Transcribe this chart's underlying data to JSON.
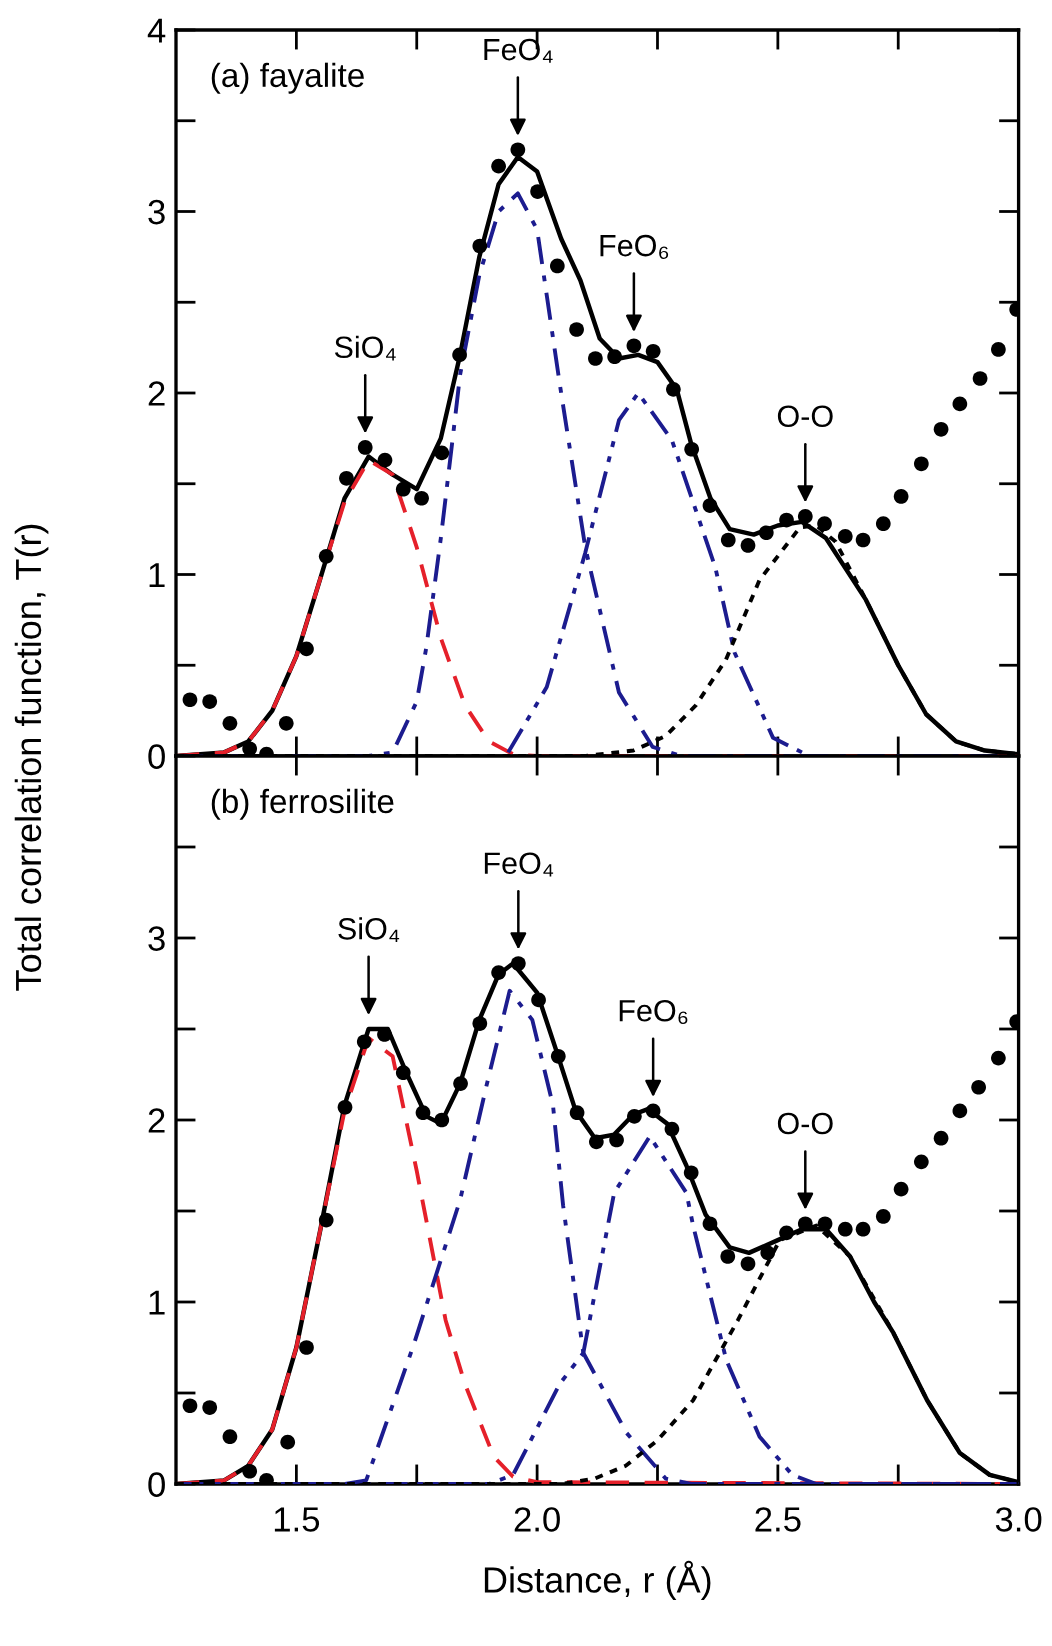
{
  "chart_data": [
    {
      "type": "line",
      "title": "(a) fayalite",
      "ylabel": "Total correlation function, T(r)",
      "xlim": [
        1.25,
        3.0
      ],
      "ylim": [
        0,
        4
      ],
      "xticks": [
        {
          "value": 1.5,
          "label": null
        },
        {
          "value": 1.75,
          "label": null
        },
        {
          "value": 2.0,
          "label": null
        },
        {
          "value": 2.25,
          "label": null
        },
        {
          "value": 2.5,
          "label": null
        },
        {
          "value": 2.75,
          "label": null
        }
      ],
      "yticks": [
        0,
        {
          "value": 0.5,
          "label": null
        },
        1,
        {
          "value": 1.5,
          "label": null
        },
        2,
        {
          "value": 2.5,
          "label": null
        },
        3,
        {
          "value": 3.5,
          "label": null
        },
        4
      ],
      "tick_labels": "y",
      "grid": false,
      "legend": false,
      "series": [
        {
          "type": "scatter",
          "marker": "circle",
          "color": "#000000",
          "x": [
            1.279,
            1.32,
            1.362,
            1.403,
            1.438,
            1.479,
            1.521,
            1.562,
            1.604,
            1.643,
            1.684,
            1.722,
            1.76,
            1.802,
            1.839,
            1.881,
            1.92,
            1.96,
            2.001,
            2.042,
            2.082,
            2.121,
            2.161,
            2.201,
            2.241,
            2.283,
            2.321,
            2.359,
            2.397,
            2.438,
            2.476,
            2.518,
            2.557,
            2.597,
            2.64,
            2.677,
            2.719,
            2.756,
            2.798,
            2.839,
            2.878,
            2.92,
            2.958,
            2.996
          ],
          "values": [
            0.31,
            0.3,
            0.18,
            0.04,
            0.01,
            0.18,
            0.59,
            1.1,
            1.53,
            1.7,
            1.63,
            1.47,
            1.42,
            1.67,
            2.21,
            2.81,
            3.25,
            3.34,
            3.11,
            2.7,
            2.35,
            2.19,
            2.2,
            2.26,
            2.23,
            2.02,
            1.69,
            1.38,
            1.19,
            1.16,
            1.23,
            1.3,
            1.32,
            1.28,
            1.21,
            1.19,
            1.28,
            1.43,
            1.61,
            1.8,
            1.94,
            2.08,
            2.24,
            2.46
          ]
        },
        {
          "type": "line",
          "line_style": "dashed",
          "color": "#e5202a",
          "x": [
            1.25,
            1.35,
            1.4,
            1.45,
            1.5,
            1.55,
            1.6,
            1.65,
            1.7,
            1.75,
            1.8,
            1.85,
            1.9,
            1.95,
            2.0,
            3.0
          ],
          "values": [
            0,
            0.02,
            0.08,
            0.25,
            0.55,
            0.98,
            1.4,
            1.63,
            1.55,
            1.15,
            0.65,
            0.28,
            0.08,
            0.01,
            0,
            0
          ]
        },
        {
          "type": "line",
          "line_style": "dashdot",
          "color": "#1c1c8f",
          "x": [
            1.25,
            1.65,
            1.7,
            1.75,
            1.77,
            1.8,
            1.826,
            1.84,
            1.88,
            1.92,
            1.96,
            2.0,
            2.047,
            2.1,
            2.17,
            2.24,
            2.3,
            3.0
          ],
          "values": [
            0,
            0,
            0.02,
            0.3,
            0.6,
            1.2,
            1.78,
            2.1,
            2.65,
            3.0,
            3.1,
            2.9,
            2.05,
            1.15,
            0.35,
            0.05,
            0,
            0
          ]
        },
        {
          "type": "line",
          "line_style": "dashdotdot",
          "color": "#1c1c8f",
          "x": [
            1.94,
            2.02,
            2.1,
            2.17,
            2.21,
            2.28,
            2.37,
            2.41,
            2.49,
            2.55
          ],
          "values": [
            0.02,
            0.38,
            1.12,
            1.85,
            2.0,
            1.74,
            1.04,
            0.57,
            0.1,
            0.02
          ]
        },
        {
          "type": "line",
          "line_style": "dotted",
          "color": "#000000",
          "x": [
            1.25,
            2.1,
            2.2,
            2.267,
            2.33,
            2.392,
            2.462,
            2.546,
            2.58,
            2.62,
            2.683,
            2.75,
            2.808,
            2.87,
            2.93,
            3.0
          ],
          "values": [
            0,
            0,
            0.03,
            0.11,
            0.28,
            0.53,
            0.97,
            1.26,
            1.27,
            1.18,
            0.86,
            0.5,
            0.23,
            0.08,
            0.03,
            0.01
          ]
        },
        {
          "type": "line",
          "line_style": "solid",
          "color": "#000000",
          "x": [
            1.25,
            1.35,
            1.4,
            1.45,
            1.5,
            1.55,
            1.6,
            1.65,
            1.7,
            1.75,
            1.8,
            1.84,
            1.88,
            1.92,
            1.96,
            2.0,
            2.05,
            2.09,
            2.13,
            2.17,
            2.21,
            2.25,
            2.29,
            2.32,
            2.36,
            2.4,
            2.45,
            2.5,
            2.55,
            2.6,
            2.683,
            2.75,
            2.808,
            2.87,
            2.93,
            3.0
          ],
          "values": [
            0,
            0.02,
            0.08,
            0.25,
            0.55,
            0.98,
            1.42,
            1.65,
            1.55,
            1.47,
            1.75,
            2.21,
            2.75,
            3.15,
            3.3,
            3.22,
            2.85,
            2.62,
            2.3,
            2.19,
            2.21,
            2.17,
            2.02,
            1.72,
            1.42,
            1.25,
            1.22,
            1.27,
            1.29,
            1.2,
            0.86,
            0.5,
            0.23,
            0.08,
            0.03,
            0.01
          ]
        }
      ],
      "annotations": [
        {
          "text": "SiO₄",
          "x": 1.643,
          "y": 1.7
        },
        {
          "text": "FeO₄",
          "x": 1.96,
          "y": 3.34
        },
        {
          "text": "FeO₆",
          "x": 2.201,
          "y": 2.26
        },
        {
          "text": "O-O",
          "x": 2.557,
          "y": 1.32
        }
      ]
    },
    {
      "type": "line",
      "title": "(b) ferrosilite",
      "xlabel": "Distance, r (Å)",
      "xlim": [
        1.25,
        3.0
      ],
      "ylim": [
        0,
        4
      ],
      "xticks": [
        1.5,
        {
          "value": 1.75,
          "label": null
        },
        {
          "value": 2.0,
          "label": "2.0"
        },
        {
          "value": 2.25,
          "label": null
        },
        2.5,
        {
          "value": 2.75,
          "label": null
        },
        {
          "value": 3.0,
          "label": "3.0"
        }
      ],
      "yticks": [
        0,
        {
          "value": 0.5,
          "label": null
        },
        1,
        {
          "value": 1.5,
          "label": null
        },
        2,
        {
          "value": 2.5,
          "label": null
        },
        3,
        {
          "value": 3.5,
          "label": null
        },
        {
          "value": 4,
          "label": null
        }
      ],
      "grid": false,
      "legend": false,
      "series": [
        {
          "type": "scatter",
          "marker": "circle",
          "color": "#000000",
          "x": [
            1.279,
            1.32,
            1.362,
            1.403,
            1.438,
            1.482,
            1.521,
            1.562,
            1.601,
            1.641,
            1.683,
            1.722,
            1.763,
            1.802,
            1.841,
            1.881,
            1.92,
            1.961,
            2.003,
            2.044,
            2.083,
            2.123,
            2.165,
            2.202,
            2.241,
            2.28,
            2.32,
            2.359,
            2.396,
            2.438,
            2.479,
            2.518,
            2.557,
            2.598,
            2.64,
            2.677,
            2.719,
            2.756,
            2.798,
            2.839,
            2.878,
            2.917,
            2.958,
            2.996
          ],
          "values": [
            0.43,
            0.42,
            0.26,
            0.07,
            0.02,
            0.23,
            0.75,
            1.45,
            2.07,
            2.43,
            2.47,
            2.26,
            2.04,
            2.0,
            2.2,
            2.53,
            2.81,
            2.86,
            2.66,
            2.35,
            2.04,
            1.88,
            1.89,
            2.02,
            2.05,
            1.95,
            1.71,
            1.43,
            1.25,
            1.21,
            1.27,
            1.38,
            1.43,
            1.43,
            1.4,
            1.4,
            1.47,
            1.62,
            1.77,
            1.9,
            2.05,
            2.18,
            2.34,
            2.54
          ]
        },
        {
          "type": "line",
          "line_style": "dashed",
          "color": "#e5202a",
          "x": [
            1.25,
            1.35,
            1.4,
            1.45,
            1.5,
            1.55,
            1.6,
            1.65,
            1.7,
            1.75,
            1.81,
            1.85,
            1.91,
            1.95,
            2.0,
            3.0
          ],
          "values": [
            0,
            0.02,
            0.1,
            0.3,
            0.75,
            1.4,
            2.05,
            2.45,
            2.35,
            1.72,
            0.9,
            0.55,
            0.15,
            0.04,
            0.01,
            0
          ]
        },
        {
          "type": "line",
          "line_style": "dashdot",
          "color": "#1c1c8f",
          "x": [
            1.25,
            1.6,
            1.645,
            1.743,
            1.84,
            1.895,
            1.943,
            1.99,
            2.033,
            2.054,
            2.096,
            2.186,
            2.267,
            2.32,
            3.0
          ],
          "values": [
            0,
            0,
            0.02,
            0.76,
            1.56,
            2.19,
            2.71,
            2.55,
            2.08,
            1.53,
            0.72,
            0.28,
            0.03,
            0,
            0
          ]
        },
        {
          "type": "line",
          "line_style": "dashdotdot",
          "color": "#1c1c8f",
          "x": [
            1.25,
            1.9,
            1.95,
            2.047,
            2.096,
            2.16,
            2.234,
            2.31,
            2.324,
            2.393,
            2.462,
            2.53,
            2.58,
            3.0
          ],
          "values": [
            0,
            0,
            0.05,
            0.55,
            0.72,
            1.6,
            1.91,
            1.6,
            1.42,
            0.68,
            0.26,
            0.05,
            0,
            0
          ]
        },
        {
          "type": "line",
          "line_style": "dotted",
          "color": "#000000",
          "x": [
            1.25,
            2.05,
            2.12,
            2.184,
            2.25,
            2.324,
            2.417,
            2.504,
            2.58,
            2.65,
            2.74,
            2.81,
            2.878,
            2.94,
            3.0
          ],
          "values": [
            0,
            0,
            0.03,
            0.1,
            0.24,
            0.46,
            0.9,
            1.34,
            1.42,
            1.25,
            0.83,
            0.46,
            0.17,
            0.05,
            0.01
          ]
        },
        {
          "type": "line",
          "line_style": "solid",
          "color": "#000000",
          "x": [
            1.25,
            1.35,
            1.4,
            1.45,
            1.5,
            1.55,
            1.6,
            1.65,
            1.69,
            1.73,
            1.77,
            1.8,
            1.84,
            1.88,
            1.92,
            1.95,
            2.0,
            2.04,
            2.08,
            2.12,
            2.16,
            2.2,
            2.23,
            2.27,
            2.31,
            2.35,
            2.4,
            2.44,
            2.5,
            2.55,
            2.6,
            2.65,
            2.7,
            2.74,
            2.81,
            2.878,
            2.94,
            3.0
          ],
          "values": [
            0,
            0.02,
            0.1,
            0.3,
            0.75,
            1.4,
            2.08,
            2.5,
            2.5,
            2.25,
            2.02,
            1.98,
            2.2,
            2.55,
            2.8,
            2.86,
            2.7,
            2.38,
            2.05,
            1.9,
            1.92,
            2.03,
            2.06,
            1.98,
            1.75,
            1.48,
            1.3,
            1.27,
            1.34,
            1.4,
            1.4,
            1.25,
            1.0,
            0.83,
            0.46,
            0.17,
            0.05,
            0.01
          ]
        }
      ],
      "annotations": [
        {
          "text": "SiO₄",
          "x": 1.65,
          "y": 2.5
        },
        {
          "text": "FeO₄",
          "x": 1.961,
          "y": 2.86
        },
        {
          "text": "FeO₆",
          "x": 2.241,
          "y": 2.05
        },
        {
          "text": "O-O",
          "x": 2.557,
          "y": 1.43
        }
      ]
    }
  ]
}
